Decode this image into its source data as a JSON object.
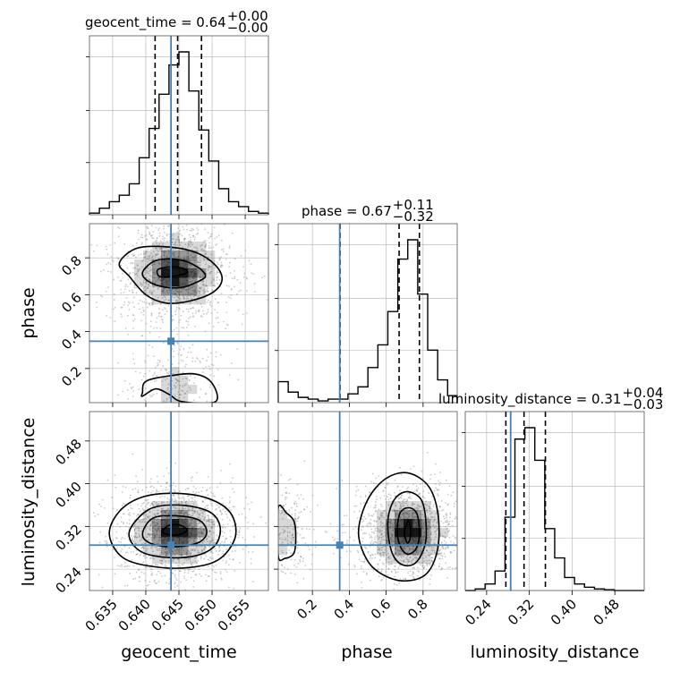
{
  "chart_data": {
    "type": "corner",
    "parameters": [
      "geocent_time",
      "phase",
      "luminosity_distance"
    ],
    "titles": [
      {
        "param": "geocent_time",
        "text": "geocent_time = 0.64",
        "sup": "+0.00",
        "sub": "−0.00"
      },
      {
        "param": "phase",
        "text": "phase = 0.67",
        "sup": "+0.11",
        "sub": "−0.32"
      },
      {
        "param": "luminosity_distance",
        "text": "luminosity_distance = 0.31",
        "sup": "+0.04",
        "sub": "−0.03"
      }
    ],
    "axis_labels": {
      "geocent_time": "geocent_time",
      "phase": "phase",
      "luminosity_distance": "luminosity_distance"
    },
    "ranges": {
      "geocent_time": [
        0.6315,
        0.6585
      ],
      "phase": [
        0.015,
        0.985
      ],
      "luminosity_distance": [
        0.2,
        0.535
      ]
    },
    "ticks": {
      "geocent_time": [
        0.635,
        0.64,
        0.645,
        0.65,
        0.655
      ],
      "phase": [
        0.2,
        0.4,
        0.6,
        0.8
      ],
      "luminosity_distance": [
        0.24,
        0.32,
        0.4,
        0.48
      ]
    },
    "tick_labels": {
      "geocent_time": [
        "0.635",
        "0.640",
        "0.645",
        "0.650",
        "0.655"
      ],
      "phase": [
        "0.2",
        "0.4",
        "0.6",
        "0.8"
      ],
      "luminosity_distance": [
        "0.24",
        "0.32",
        "0.40",
        "0.48"
      ]
    },
    "truths": {
      "geocent_time": 0.6438,
      "phase": 0.348,
      "luminosity_distance": 0.285
    },
    "quantiles": {
      "geocent_time": [
        0.6414,
        0.6448,
        0.6484
      ],
      "phase": [
        0.35,
        0.67,
        0.78
      ],
      "luminosity_distance": [
        0.276,
        0.31,
        0.35
      ]
    },
    "histograms": {
      "geocent_time": {
        "edges": [
          0.6315,
          0.633,
          0.6345,
          0.636,
          0.6375,
          0.639,
          0.6405,
          0.642,
          0.6435,
          0.645,
          0.6465,
          0.648,
          0.6495,
          0.651,
          0.6525,
          0.654,
          0.6555,
          0.657,
          0.6585
        ],
        "counts": [
          0.01,
          0.04,
          0.08,
          0.12,
          0.19,
          0.35,
          0.53,
          0.74,
          0.92,
          1.0,
          0.76,
          0.52,
          0.33,
          0.16,
          0.08,
          0.05,
          0.02,
          0.01
        ]
      },
      "phase": {
        "edges": [
          0.015,
          0.069,
          0.123,
          0.177,
          0.231,
          0.285,
          0.339,
          0.393,
          0.447,
          0.501,
          0.555,
          0.609,
          0.663,
          0.717,
          0.771,
          0.825,
          0.879,
          0.933,
          0.985
        ],
        "counts": [
          0.12,
          0.06,
          0.03,
          0.02,
          0.01,
          0.02,
          0.02,
          0.05,
          0.09,
          0.2,
          0.33,
          0.52,
          0.82,
          0.93,
          0.62,
          0.3,
          0.13,
          0.04
        ]
      },
      "luminosity_distance": {
        "edges": [
          0.2,
          0.2186,
          0.2372,
          0.2558,
          0.2744,
          0.293,
          0.3116,
          0.3302,
          0.3488,
          0.3674,
          0.386,
          0.4046,
          0.4232,
          0.4418,
          0.4604,
          0.479,
          0.4976,
          0.5162,
          0.535
        ],
        "counts": [
          0.0,
          0.01,
          0.04,
          0.12,
          0.45,
          0.93,
          1.0,
          0.8,
          0.38,
          0.2,
          0.08,
          0.04,
          0.02,
          0.01,
          0.005,
          0.0,
          0.0,
          0.0
        ]
      }
    },
    "hist2d": [
      {
        "x": "geocent_time",
        "y": "phase",
        "peaks": [
          {
            "x": 0.6445,
            "y": 0.72,
            "sx": 0.0028,
            "sy": 0.09,
            "w": 1.0
          },
          {
            "x": 0.6445,
            "y": 0.1,
            "sx": 0.0022,
            "sy": 0.08,
            "w": 0.2
          }
        ],
        "scatter_n": 1500,
        "contours": [
          [
            [
              0.642,
              0.7
            ],
            [
              0.6432,
              0.695
            ],
            [
              0.6445,
              0.702
            ],
            [
              0.6457,
              0.712
            ],
            [
              0.6463,
              0.725
            ],
            [
              0.6455,
              0.745
            ],
            [
              0.6435,
              0.75
            ],
            [
              0.6418,
              0.735
            ]
          ],
          [
            [
              0.6395,
              0.72
            ],
            [
              0.6405,
              0.67
            ],
            [
              0.643,
              0.64
            ],
            [
              0.6455,
              0.64
            ],
            [
              0.6475,
              0.665
            ],
            [
              0.649,
              0.7
            ],
            [
              0.6478,
              0.75
            ],
            [
              0.645,
              0.79
            ],
            [
              0.6415,
              0.785
            ]
          ],
          [
            [
              0.636,
              0.77
            ],
            [
              0.6375,
              0.7
            ],
            [
              0.64,
              0.6
            ],
            [
              0.643,
              0.555
            ],
            [
              0.6465,
              0.565
            ],
            [
              0.65,
              0.61
            ],
            [
              0.6515,
              0.68
            ],
            [
              0.6505,
              0.76
            ],
            [
              0.6475,
              0.83
            ],
            [
              0.643,
              0.86
            ],
            [
              0.6385,
              0.85
            ]
          ],
          [
            [
              0.6395,
              0.07
            ],
            [
              0.64,
              0.13
            ],
            [
              0.6435,
              0.16
            ],
            [
              0.6475,
              0.17
            ],
            [
              0.65,
              0.12
            ],
            [
              0.6505,
              0.02
            ],
            [
              0.6455,
              0.02
            ],
            [
              0.6435,
              0.06
            ],
            [
              0.6415,
              0.09
            ],
            [
              0.6395,
              0.05
            ]
          ]
        ]
      },
      {
        "x": "geocent_time",
        "y": "luminosity_distance",
        "peaks": [
          {
            "x": 0.6445,
            "y": 0.31,
            "sx": 0.0028,
            "sy": 0.028,
            "w": 1.0
          }
        ],
        "scatter_n": 1500,
        "contours": [
          [
            [
              0.6425,
              0.31
            ],
            [
              0.6438,
              0.304
            ],
            [
              0.6452,
              0.305
            ],
            [
              0.6462,
              0.313
            ],
            [
              0.6452,
              0.322
            ],
            [
              0.6435,
              0.322
            ]
          ],
          [
            [
              0.6395,
              0.305
            ],
            [
              0.641,
              0.287
            ],
            [
              0.6445,
              0.282
            ],
            [
              0.648,
              0.29
            ],
            [
              0.6492,
              0.31
            ],
            [
              0.648,
              0.332
            ],
            [
              0.6445,
              0.34
            ],
            [
              0.641,
              0.335
            ]
          ],
          [
            [
              0.6375,
              0.31
            ],
            [
              0.639,
              0.275
            ],
            [
              0.643,
              0.262
            ],
            [
              0.6475,
              0.265
            ],
            [
              0.6505,
              0.285
            ],
            [
              0.6512,
              0.32
            ],
            [
              0.6495,
              0.348
            ],
            [
              0.645,
              0.36
            ],
            [
              0.6405,
              0.352
            ]
          ],
          [
            [
              0.6345,
              0.305
            ],
            [
              0.6365,
              0.262
            ],
            [
              0.641,
              0.245
            ],
            [
              0.6465,
              0.243
            ],
            [
              0.651,
              0.258
            ],
            [
              0.6535,
              0.3
            ],
            [
              0.6528,
              0.345
            ],
            [
              0.6495,
              0.372
            ],
            [
              0.6445,
              0.382
            ],
            [
              0.6395,
              0.375
            ],
            [
              0.636,
              0.348
            ]
          ]
        ]
      },
      {
        "x": "phase",
        "y": "luminosity_distance",
        "peaks": [
          {
            "x": 0.72,
            "y": 0.31,
            "sx": 0.09,
            "sy": 0.028,
            "w": 1.0
          },
          {
            "x": 0.05,
            "y": 0.31,
            "sx": 0.05,
            "sy": 0.03,
            "w": 0.2
          }
        ],
        "scatter_n": 1500,
        "contours": [
          [
            [
              0.7,
              0.31
            ],
            [
              0.712,
              0.29
            ],
            [
              0.728,
              0.295
            ],
            [
              0.732,
              0.315
            ],
            [
              0.72,
              0.33
            ]
          ],
          [
            [
              0.66,
              0.31
            ],
            [
              0.68,
              0.28
            ],
            [
              0.72,
              0.268
            ],
            [
              0.765,
              0.28
            ],
            [
              0.78,
              0.31
            ],
            [
              0.765,
              0.345
            ],
            [
              0.72,
              0.355
            ],
            [
              0.675,
              0.345
            ]
          ],
          [
            [
              0.61,
              0.31
            ],
            [
              0.635,
              0.268
            ],
            [
              0.69,
              0.248
            ],
            [
              0.76,
              0.252
            ],
            [
              0.81,
              0.285
            ],
            [
              0.815,
              0.33
            ],
            [
              0.79,
              0.37
            ],
            [
              0.72,
              0.385
            ],
            [
              0.655,
              0.375
            ],
            [
              0.615,
              0.345
            ]
          ],
          [
            [
              0.45,
              0.31
            ],
            [
              0.495,
              0.258
            ],
            [
              0.58,
              0.23
            ],
            [
              0.7,
              0.218
            ],
            [
              0.82,
              0.232
            ],
            [
              0.88,
              0.28
            ],
            [
              0.88,
              0.345
            ],
            [
              0.83,
              0.395
            ],
            [
              0.72,
              0.42
            ],
            [
              0.6,
              0.41
            ],
            [
              0.5,
              0.37
            ]
          ],
          [
            [
              0.015,
              0.355
            ],
            [
              0.06,
              0.345
            ],
            [
              0.1,
              0.33
            ],
            [
              0.11,
              0.3
            ],
            [
              0.1,
              0.27
            ],
            [
              0.05,
              0.26
            ],
            [
              0.015,
              0.265
            ]
          ]
        ]
      }
    ],
    "colors": {
      "line": "#000000",
      "truth": "#4682b4",
      "grid": "#b0b0b0",
      "density": "#000000",
      "scatter": "#8c8c8c"
    }
  }
}
